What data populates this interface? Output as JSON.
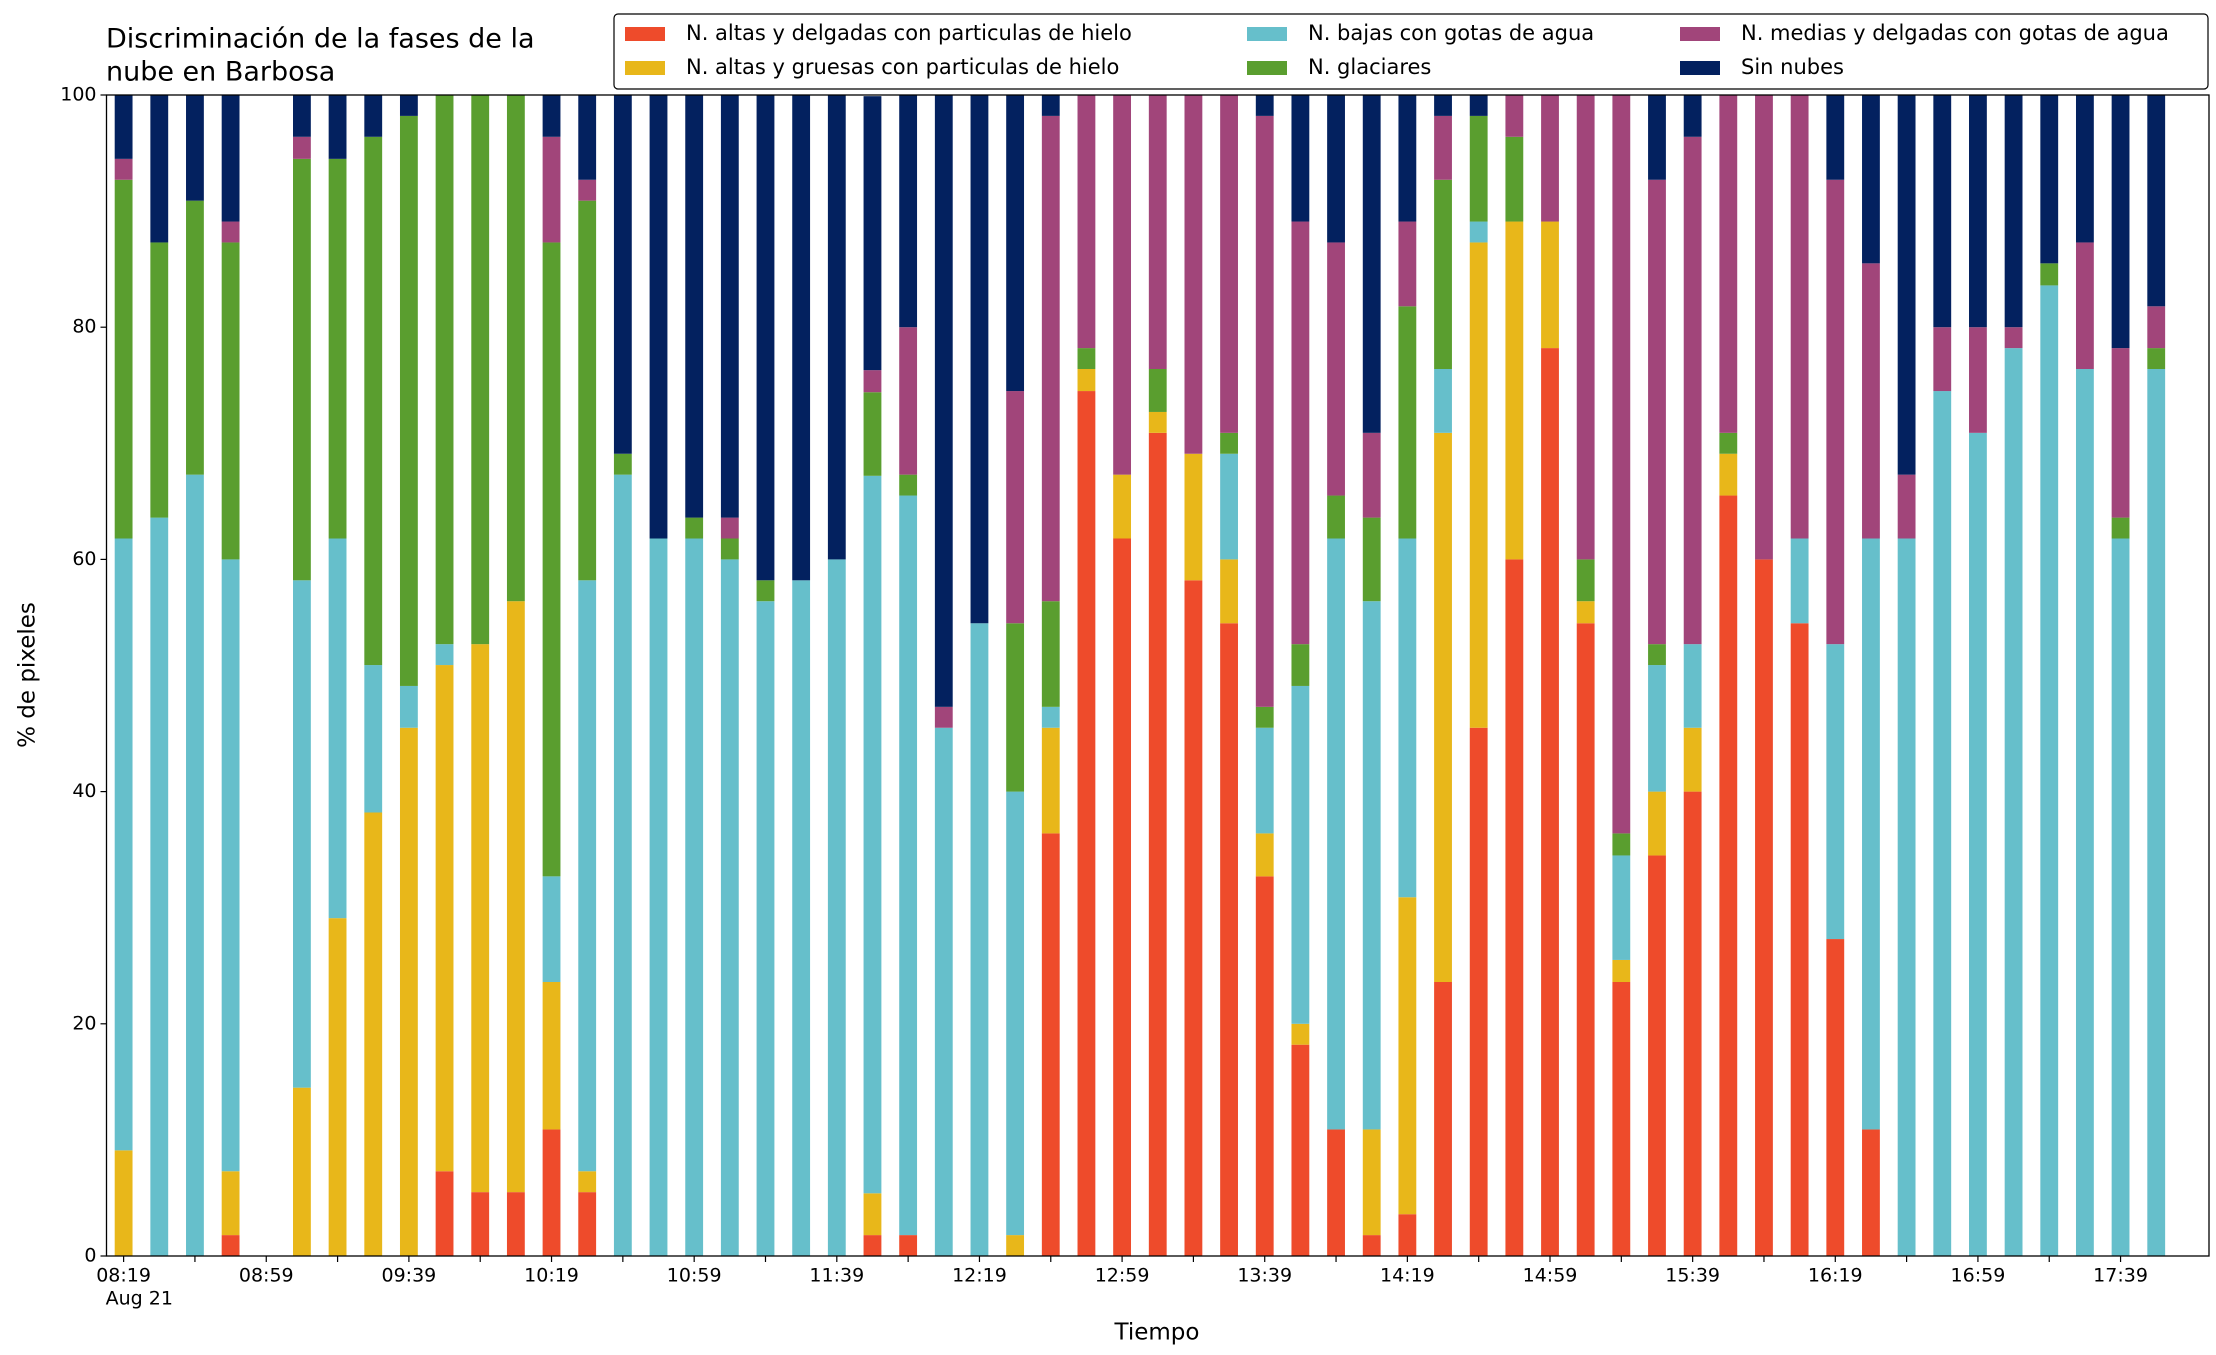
{
  "chart_data": {
    "type": "stacked_bar",
    "title": [
      "Discriminación de la fases de la",
      "nube en Barbosa"
    ],
    "x_label": "Tiempo",
    "y_label": "% de pixeles",
    "date_label": "Aug 21",
    "categories": [
      "08:19",
      null,
      null,
      null,
      "08:59",
      null,
      null,
      null,
      "09:39",
      null,
      null,
      null,
      "10:19",
      null,
      null,
      null,
      "10:59",
      null,
      null,
      null,
      "11:39",
      null,
      null,
      null,
      "12:19",
      null,
      null,
      null,
      "12:59",
      null,
      null,
      null,
      "13:39",
      null,
      null,
      null,
      "14:19",
      null,
      null,
      null,
      "14:59",
      null,
      null,
      null,
      "15:39",
      null,
      null,
      null,
      "16:19",
      null,
      null,
      null,
      "16:59",
      null,
      null,
      null,
      "17:39",
      null
    ],
    "ylim": [
      0,
      100
    ],
    "yticks": [
      0,
      20,
      40,
      60,
      80,
      100
    ],
    "grid": false,
    "legend": "upper right",
    "series": [
      {
        "name": "N. altas y delgadas con particulas de hielo",
        "color": "#ee4b2b",
        "values": [
          0,
          0,
          0,
          1.8,
          0,
          0,
          0,
          0,
          0,
          7.3,
          5.5,
          5.5,
          10.9,
          5.5,
          0,
          0,
          0,
          0,
          0,
          0,
          0,
          1.8,
          1.8,
          0,
          0,
          0,
          36.4,
          74.5,
          61.8,
          70.9,
          58.2,
          54.5,
          32.7,
          18.2,
          10.9,
          1.8,
          3.6,
          23.6,
          45.5,
          60,
          78.2,
          54.5,
          23.6,
          34.5,
          40,
          65.5,
          60,
          54.5,
          27.3,
          10.9,
          0,
          0,
          0,
          0,
          0,
          0,
          0,
          0
        ]
      },
      {
        "name": "N. altas y gruesas con particulas de hielo",
        "color": "#e8b71a",
        "values": [
          9.1,
          0,
          0,
          5.5,
          0,
          14.5,
          29.1,
          38.2,
          45.5,
          43.6,
          47.2,
          50.9,
          12.7,
          1.8,
          0,
          0,
          0,
          0,
          0,
          0,
          0,
          3.6,
          0,
          0,
          0,
          1.8,
          9.1,
          1.9,
          5.5,
          1.8,
          10.9,
          5.5,
          3.7,
          1.8,
          0,
          9.1,
          27.3,
          47.3,
          41.8,
          29.1,
          10.9,
          1.9,
          1.9,
          5.5,
          5.5,
          3.6,
          0,
          0,
          0,
          0,
          0,
          0,
          0,
          0,
          0,
          0,
          0,
          0
        ]
      },
      {
        "name": "N. bajas con gotas de agua",
        "color": "#66bfcb",
        "values": [
          52.7,
          63.6,
          67.3,
          52.7,
          0,
          43.7,
          32.7,
          12.7,
          3.6,
          1.8,
          0,
          0,
          9.1,
          50.9,
          67.3,
          61.8,
          61.8,
          60,
          56.4,
          58.2,
          60,
          61.8,
          63.7,
          45.5,
          54.5,
          38.2,
          1.8,
          0,
          0,
          0,
          0,
          9.1,
          9.1,
          29.1,
          50.9,
          45.5,
          30.9,
          5.5,
          1.8,
          0,
          0,
          0,
          9,
          10.9,
          7.2,
          0,
          0,
          7.3,
          25.4,
          50.9,
          61.8,
          74.5,
          70.9,
          78.2,
          83.6,
          76.4,
          61.8,
          76.4
        ]
      },
      {
        "name": "N. glaciares",
        "color": "#5a9e2f",
        "values": [
          30.9,
          23.7,
          23.6,
          27.3,
          0,
          36.3,
          32.7,
          45.5,
          49.1,
          47.3,
          47.3,
          43.6,
          54.6,
          32.7,
          1.8,
          0,
          1.8,
          1.8,
          1.8,
          0,
          0,
          7.2,
          1.8,
          0,
          0,
          14.5,
          9.1,
          1.8,
          0,
          3.7,
          0,
          1.8,
          1.8,
          3.6,
          3.7,
          7.2,
          20,
          16.3,
          9.1,
          7.3,
          0,
          3.6,
          1.9,
          1.8,
          0,
          1.8,
          0,
          0,
          0,
          0,
          0,
          0,
          0,
          0,
          1.9,
          0,
          1.8,
          1.8
        ]
      },
      {
        "name": "N. medias y delgadas con gotas de agua",
        "color": "#a1457a",
        "values": [
          1.8,
          0,
          0,
          1.8,
          0,
          1.9,
          0,
          0,
          0,
          0,
          0,
          0,
          9.1,
          1.8,
          0,
          0,
          0,
          1.8,
          0,
          0,
          0,
          1.9,
          12.7,
          1.8,
          0,
          20,
          41.8,
          21.8,
          32.7,
          23.6,
          30.9,
          29.1,
          50.9,
          36.4,
          21.8,
          7.3,
          7.3,
          5.5,
          0,
          3.6,
          10.9,
          40,
          63.6,
          40,
          43.7,
          29.1,
          40,
          38.2,
          40,
          23.7,
          5.5,
          5.5,
          9.1,
          1.8,
          0,
          10.9,
          14.6,
          3.6
        ]
      },
      {
        "name": "Sin nubes",
        "color": "#03215f",
        "values": [
          5.5,
          12.7,
          9.1,
          10.9,
          0,
          3.6,
          5.5,
          3.6,
          1.8,
          0,
          0,
          0,
          3.6,
          7.3,
          30.9,
          38.2,
          36.4,
          36.4,
          41.8,
          41.8,
          40,
          23.6,
          20,
          52.7,
          45.5,
          25.5,
          1.8,
          0,
          0,
          0,
          0,
          0,
          1.8,
          10.9,
          12.7,
          29.1,
          10.9,
          1.8,
          1.8,
          0,
          0,
          0,
          0,
          7.3,
          3.6,
          0,
          0,
          0,
          7.3,
          14.5,
          32.7,
          20,
          20,
          20,
          14.5,
          12.7,
          21.8,
          18.2
        ]
      }
    ]
  }
}
